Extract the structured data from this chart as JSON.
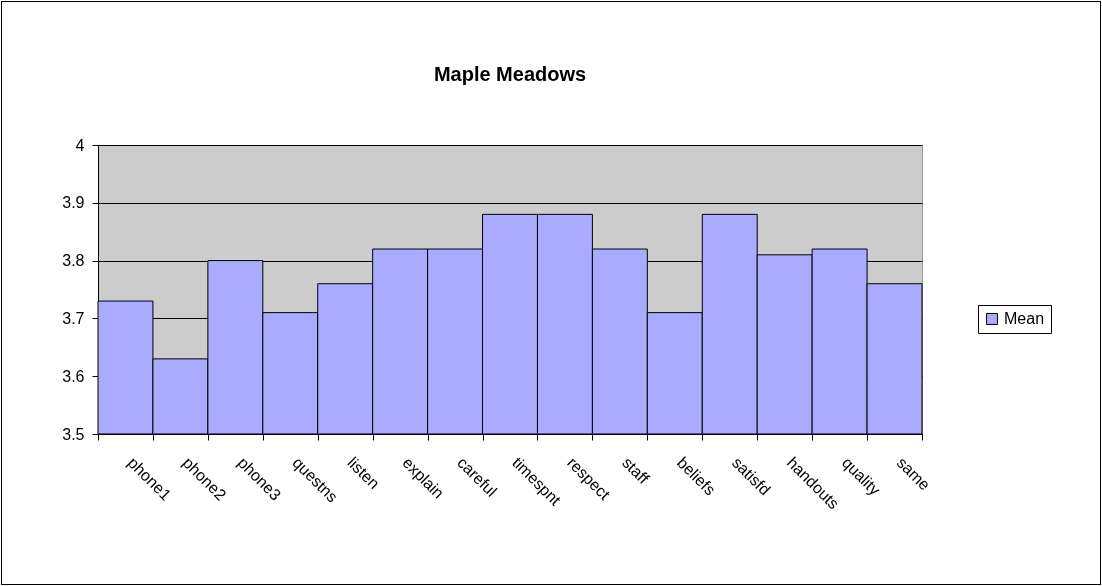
{
  "chart_data": {
    "type": "bar",
    "title": "Maple Meadows",
    "categories": [
      "phone1",
      "phone2",
      "phone3",
      "questns",
      "listen",
      "explain",
      "careful",
      "timespnt",
      "respect",
      "staff",
      "beliefs",
      "satisfd",
      "handouts",
      "quality",
      "same"
    ],
    "series": [
      {
        "name": "Mean",
        "color": "#aaaaff",
        "values": [
          3.73,
          3.63,
          3.8,
          3.71,
          3.76,
          3.82,
          3.82,
          3.88,
          3.88,
          3.82,
          3.71,
          3.88,
          3.81,
          3.82,
          3.76
        ]
      }
    ],
    "ylim": [
      3.5,
      4
    ],
    "yticks": [
      3.5,
      3.6,
      3.7,
      3.8,
      3.9,
      4
    ],
    "grid": "y",
    "legend": "right"
  }
}
